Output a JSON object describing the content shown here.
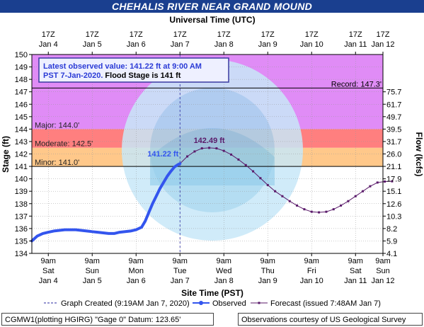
{
  "chart_data": {
    "type": "line",
    "title": "CHEHALIS RIVER NEAR GRAND MOUND",
    "top_axis_label": "Universal Time (UTC)",
    "xlabel": "Site Time (PST)",
    "ylabel": "Stage (ft)",
    "y2label": "Flow (kcfs)",
    "ylim": [
      134,
      150
    ],
    "xlim_hours": [
      0,
      192
    ],
    "y_ticks": [
      134,
      135,
      136,
      137,
      138,
      139,
      140,
      141,
      142,
      143,
      144,
      145,
      146,
      147,
      148,
      149,
      150
    ],
    "flow_ticks": [
      {
        "stage": 134,
        "label": "4.1"
      },
      {
        "stage": 135,
        "label": "5.9"
      },
      {
        "stage": 136,
        "label": "8.2"
      },
      {
        "stage": 137,
        "label": "10.3"
      },
      {
        "stage": 138,
        "label": "12.6"
      },
      {
        "stage": 139,
        "label": "15.1"
      },
      {
        "stage": 140,
        "label": "17.9"
      },
      {
        "stage": 141,
        "label": "21.1"
      },
      {
        "stage": 142,
        "label": "26.0"
      },
      {
        "stage": 143,
        "label": "31.7"
      },
      {
        "stage": 144,
        "label": "39.5"
      },
      {
        "stage": 145,
        "label": "49.7"
      },
      {
        "stage": 146,
        "label": "61.7"
      },
      {
        "stage": 147,
        "label": "75.7"
      }
    ],
    "bottom_ticks": [
      {
        "hour": 9,
        "l1": "9am",
        "l2": "Sat",
        "l3": "Jan 4"
      },
      {
        "hour": 33,
        "l1": "9am",
        "l2": "Sun",
        "l3": "Jan 5"
      },
      {
        "hour": 57,
        "l1": "9am",
        "l2": "Mon",
        "l3": "Jan 6"
      },
      {
        "hour": 81,
        "l1": "9am",
        "l2": "Tue",
        "l3": "Jan 7"
      },
      {
        "hour": 105,
        "l1": "9am",
        "l2": "Wed",
        "l3": "Jan 8"
      },
      {
        "hour": 129,
        "l1": "9am",
        "l2": "Thu",
        "l3": "Jan 9"
      },
      {
        "hour": 153,
        "l1": "9am",
        "l2": "Fri",
        "l3": "Jan 10"
      },
      {
        "hour": 177,
        "l1": "9am",
        "l2": "Sat",
        "l3": "Jan 11"
      },
      {
        "hour": 201,
        "l1": "9am",
        "l2": "Sun",
        "l3": "Jan 12"
      }
    ],
    "top_ticks": [
      {
        "l1": "17Z",
        "l2": "Jan 4"
      },
      {
        "l1": "17Z",
        "l2": "Jan 5"
      },
      {
        "l1": "17Z",
        "l2": "Jan 6"
      },
      {
        "l1": "17Z",
        "l2": "Jan 7"
      },
      {
        "l1": "17Z",
        "l2": "Jan 8"
      },
      {
        "l1": "17Z",
        "l2": "Jan 9"
      },
      {
        "l1": "17Z",
        "l2": "Jan 10"
      },
      {
        "l1": "17Z",
        "l2": "Jan 11"
      },
      {
        "l1": "17Z",
        "l2": "Jan 12"
      }
    ],
    "flood_bands": [
      {
        "name": "Minor",
        "from": 141.0,
        "to": 142.5,
        "color": "#ffc88a",
        "label": "Minor: 141.0'"
      },
      {
        "name": "Moderate",
        "from": 142.5,
        "to": 144.0,
        "color": "#ff7f7f",
        "label": "Moderate: 142.5'"
      },
      {
        "name": "Major",
        "from": 144.0,
        "to": 150.0,
        "color": "#e08cf6",
        "label": "Major: 144.0'"
      }
    ],
    "record": {
      "value": 147.3,
      "label": "Record: 147.3'"
    },
    "graph_created_hour": 81,
    "observed": {
      "name": "Observed",
      "color": "#3355ee",
      "points": [
        [
          0,
          135.0
        ],
        [
          3,
          135.4
        ],
        [
          6,
          135.6
        ],
        [
          9,
          135.7
        ],
        [
          12,
          135.8
        ],
        [
          15,
          135.85
        ],
        [
          18,
          135.9
        ],
        [
          21,
          135.9
        ],
        [
          24,
          135.9
        ],
        [
          27,
          135.85
        ],
        [
          30,
          135.8
        ],
        [
          33,
          135.75
        ],
        [
          36,
          135.7
        ],
        [
          39,
          135.65
        ],
        [
          42,
          135.6
        ],
        [
          45,
          135.6
        ],
        [
          48,
          135.7
        ],
        [
          51,
          135.75
        ],
        [
          54,
          135.8
        ],
        [
          57,
          135.9
        ],
        [
          60,
          136.1
        ],
        [
          62,
          136.6
        ],
        [
          64,
          137.3
        ],
        [
          66,
          138.0
        ],
        [
          68,
          138.6
        ],
        [
          70,
          139.2
        ],
        [
          72,
          139.7
        ],
        [
          74,
          140.2
        ],
        [
          76,
          140.6
        ],
        [
          78,
          140.95
        ],
        [
          80,
          141.15
        ],
        [
          81,
          141.22
        ]
      ]
    },
    "forecast": {
      "name": "Forecast (issued 7:48AM Jan 7)",
      "color": "#5a1a6a",
      "points": [
        [
          81,
          141.22
        ],
        [
          85,
          141.8
        ],
        [
          89,
          142.2
        ],
        [
          93,
          142.45
        ],
        [
          97,
          142.49
        ],
        [
          101,
          142.45
        ],
        [
          105,
          142.25
        ],
        [
          109,
          141.95
        ],
        [
          113,
          141.55
        ],
        [
          117,
          141.1
        ],
        [
          121,
          140.6
        ],
        [
          125,
          140.05
        ],
        [
          129,
          139.5
        ],
        [
          133,
          139.0
        ],
        [
          137,
          138.6
        ],
        [
          141,
          138.2
        ],
        [
          145,
          137.85
        ],
        [
          149,
          137.55
        ],
        [
          153,
          137.35
        ],
        [
          157,
          137.3
        ],
        [
          161,
          137.35
        ],
        [
          165,
          137.55
        ],
        [
          169,
          137.85
        ],
        [
          173,
          138.2
        ],
        [
          177,
          138.6
        ],
        [
          181,
          139.0
        ],
        [
          185,
          139.4
        ],
        [
          189,
          139.7
        ],
        [
          193,
          139.78
        ],
        [
          197,
          139.8
        ]
      ]
    },
    "annotations": {
      "current": {
        "hour": 81,
        "stage": 141.22,
        "text": "141.22 ft"
      },
      "crest": {
        "hour": 97,
        "stage": 142.49,
        "text": "142.49 ft"
      }
    },
    "info_box": {
      "line1": "Latest observed value: 141.22 ft at 9:00 AM",
      "line2_a": "PST 7-Jan-2020.",
      "line2_b": " Flood Stage is 141 ft"
    },
    "legend": {
      "created": "Graph Created (9:19AM Jan 7, 2020)",
      "observed": "Observed",
      "forecast": "Forecast (issued 7:48AM Jan 7)"
    },
    "colors": {
      "title_bar": "#1a3f8f",
      "observed": "#3355ee",
      "forecast": "#5a1a6a",
      "info_border": "#3a3aa0",
      "info_text_blue": "#2b3bd6"
    }
  },
  "footer": {
    "left": "CGMW1(plotting HGIRG) \"Gage 0\" Datum: 123.65'",
    "right": "Observations courtesy of US Geological Survey"
  }
}
